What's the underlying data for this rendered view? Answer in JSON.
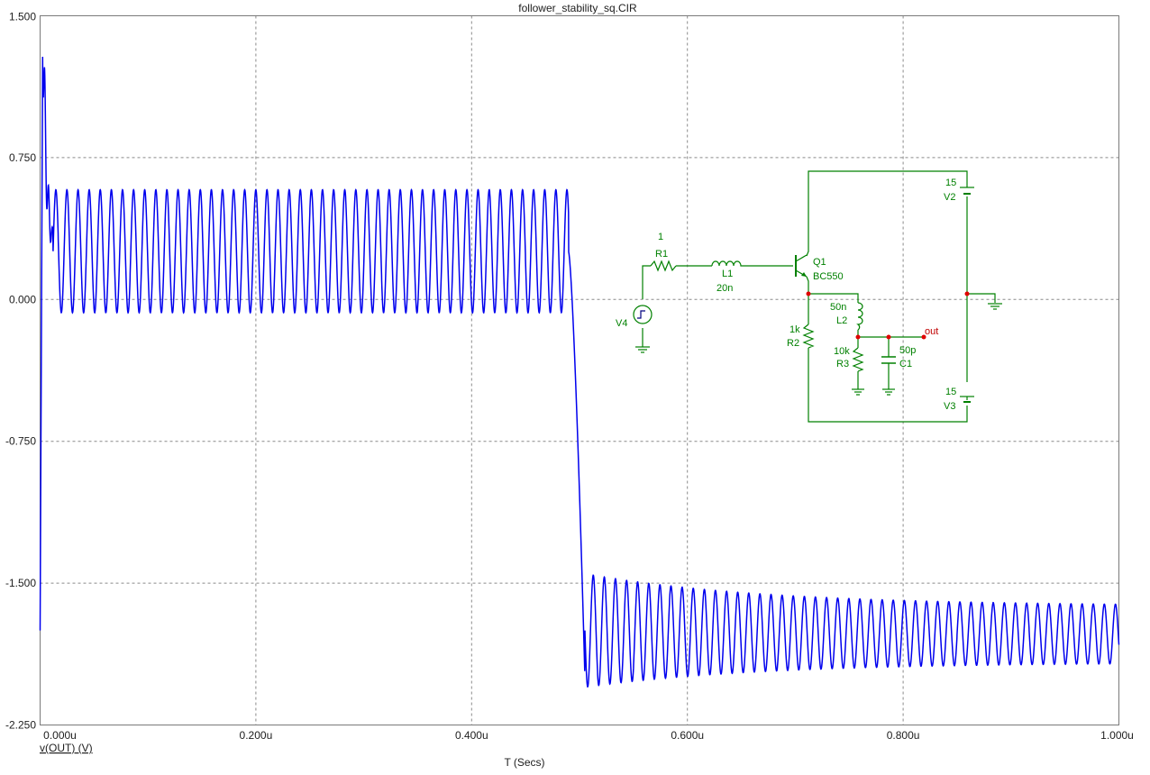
{
  "chart_data": {
    "type": "line",
    "title": "follower_stability_sq.CIR",
    "xlabel": "T (Secs)",
    "ylabel": "v(OUT) (V)",
    "xlim": [
      0,
      1.0
    ],
    "ylim": [
      -2.25,
      1.5
    ],
    "x_unit": "us",
    "x_ticks": [
      "0.000u",
      "0.200u",
      "0.400u",
      "0.600u",
      "0.800u",
      "1.000u"
    ],
    "y_ticks": [
      "1.500",
      "0.750",
      "0.000",
      "-0.750",
      "-1.500",
      "-2.250"
    ],
    "grid": true,
    "series": [
      {
        "name": "v(OUT) (V)",
        "color": "#0000ee",
        "oscillation_period_us": 0.0103,
        "segments": [
          {
            "t_start": 0.0,
            "t_end": 0.005,
            "description_values": {
              "start": -1.75,
              "peak": 1.5
            }
          },
          {
            "t_start": 0.005,
            "t_end": 0.5,
            "min": -0.07,
            "max": 0.58
          },
          {
            "t_start": 0.5,
            "t_end": 1.0,
            "min_start": -2.05,
            "max_start": -1.45,
            "min_end": -1.92,
            "max_end": -1.62
          }
        ],
        "key_points": [
          {
            "x": 0.0,
            "y": -1.75
          },
          {
            "x": 0.0025,
            "y": 1.5
          },
          {
            "x": 0.009,
            "y": 0.92
          },
          {
            "x": 0.1,
            "y": 0.57
          },
          {
            "x": 0.3,
            "y": -0.1
          },
          {
            "x": 0.49,
            "y": 0.59
          },
          {
            "x": 0.5,
            "y": -1.0
          },
          {
            "x": 0.51,
            "y": -2.05
          },
          {
            "x": 0.6,
            "y": -1.5
          },
          {
            "x": 1.0,
            "y": -1.65
          }
        ]
      }
    ]
  },
  "schematic": {
    "labels": {
      "r1_value": "1",
      "r1": "R1",
      "l1": "L1",
      "l1_value": "20n",
      "q1": "Q1",
      "q1_model": "BC550",
      "v4": "V4",
      "v2_value": "15",
      "v2": "V2",
      "v3_value": "15",
      "v3": "V3",
      "l2_value": "50n",
      "l2": "L2",
      "r2_value": "1k",
      "r2": "R2",
      "r3_value": "10k",
      "r3": "R3",
      "c1_value": "50p",
      "c1": "C1",
      "out": "out"
    }
  }
}
